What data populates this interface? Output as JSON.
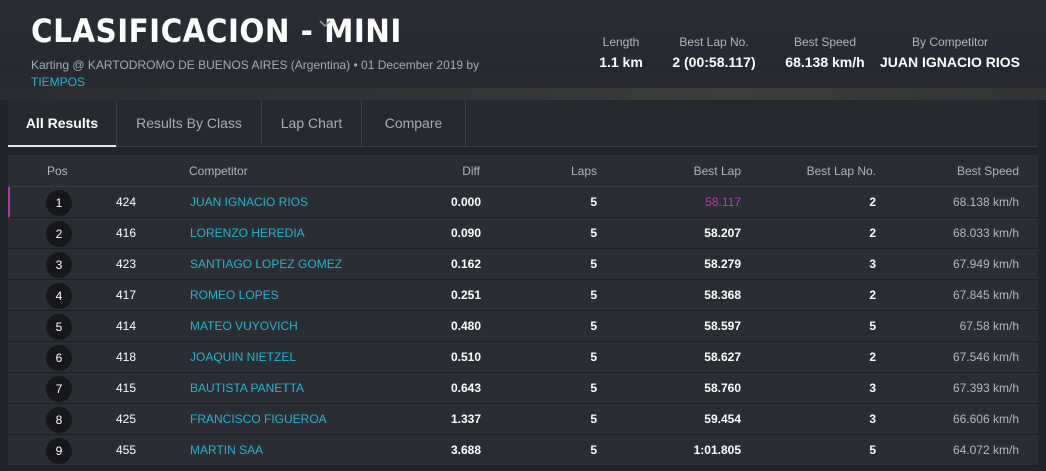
{
  "header": {
    "title": "CLASIFICACION - MINI",
    "subtitle_text": "Karting @ KARTODROMO DE BUENOS AIRES (Argentina) • 01 December 2019 by",
    "subtitle_link": "TIEMPOS"
  },
  "stats": [
    {
      "label": "Length",
      "value": "1.1 km"
    },
    {
      "label": "Best Lap No.",
      "value": "2 (00:58.117)"
    },
    {
      "label": "Best Speed",
      "value": "68.138 km/h"
    },
    {
      "label": "By Competitor",
      "value": "JUAN IGNACIO RIOS"
    }
  ],
  "tabs": [
    {
      "label": "All Results",
      "active": true
    },
    {
      "label": "Results By Class",
      "active": false
    },
    {
      "label": "Lap Chart",
      "active": false
    },
    {
      "label": "Compare",
      "active": false
    }
  ],
  "table": {
    "headers": {
      "pos": "Pos",
      "competitor": "Competitor",
      "diff": "Diff",
      "laps": "Laps",
      "best_lap": "Best Lap",
      "best_lap_no": "Best Lap No.",
      "best_speed": "Best Speed"
    },
    "rows": [
      {
        "pos": "1",
        "number": "424",
        "competitor": "JUAN IGNACIO RIOS",
        "diff": "0.000",
        "laps": "5",
        "best_lap": "58.117",
        "best_lap_no": "2",
        "best_speed": "68.138 km/h"
      },
      {
        "pos": "2",
        "number": "416",
        "competitor": "LORENZO HEREDIA",
        "diff": "0.090",
        "laps": "5",
        "best_lap": "58.207",
        "best_lap_no": "2",
        "best_speed": "68.033 km/h"
      },
      {
        "pos": "3",
        "number": "423",
        "competitor": "SANTIAGO LOPEZ GOMEZ",
        "diff": "0.162",
        "laps": "5",
        "best_lap": "58.279",
        "best_lap_no": "3",
        "best_speed": "67.949 km/h"
      },
      {
        "pos": "4",
        "number": "417",
        "competitor": "ROMEO LOPES",
        "diff": "0.251",
        "laps": "5",
        "best_lap": "58.368",
        "best_lap_no": "2",
        "best_speed": "67.845 km/h"
      },
      {
        "pos": "5",
        "number": "414",
        "competitor": "MATEO VUYOVICH",
        "diff": "0.480",
        "laps": "5",
        "best_lap": "58.597",
        "best_lap_no": "5",
        "best_speed": "67.58 km/h"
      },
      {
        "pos": "6",
        "number": "418",
        "competitor": "JOAQUIN NIETZEL",
        "diff": "0.510",
        "laps": "5",
        "best_lap": "58.627",
        "best_lap_no": "2",
        "best_speed": "67.546 km/h"
      },
      {
        "pos": "7",
        "number": "415",
        "competitor": "BAUTISTA PANETTA",
        "diff": "0.643",
        "laps": "5",
        "best_lap": "58.760",
        "best_lap_no": "3",
        "best_speed": "67.393 km/h"
      },
      {
        "pos": "8",
        "number": "425",
        "competitor": "FRANCISCO FIGUEROA",
        "diff": "1.337",
        "laps": "5",
        "best_lap": "59.454",
        "best_lap_no": "3",
        "best_speed": "66.606 km/h"
      },
      {
        "pos": "9",
        "number": "455",
        "competitor": "MARTIN SAA",
        "diff": "3.688",
        "laps": "5",
        "best_lap": "1:01.805",
        "best_lap_no": "5",
        "best_speed": "64.072 km/h"
      }
    ]
  },
  "colors": {
    "accent_link": "#27b3d2",
    "best_lap_highlight": "#c435c4"
  },
  "icons": {
    "title_dropdown": "chevron-down-icon"
  }
}
